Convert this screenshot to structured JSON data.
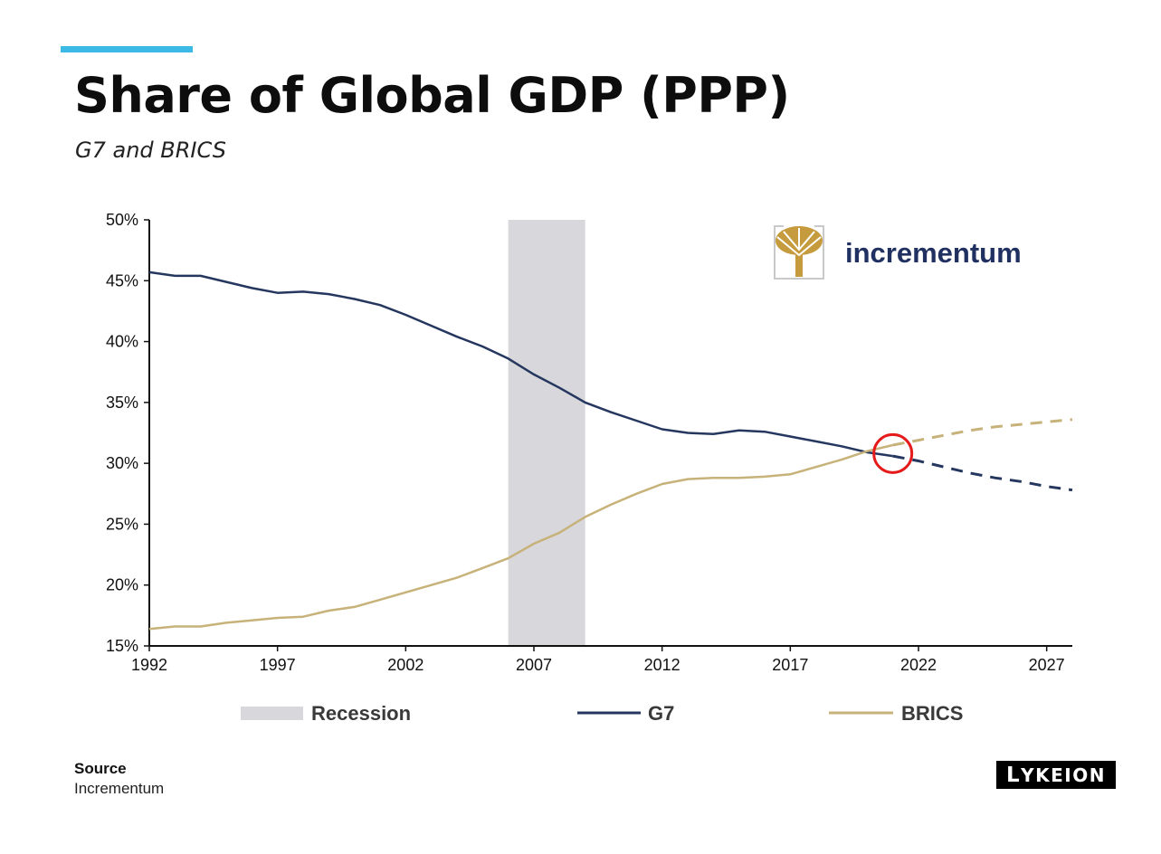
{
  "header": {
    "title": "Share of Global GDP (PPP)",
    "subtitle": "G7 and BRICS"
  },
  "footer": {
    "source_label": "Source",
    "source_text": "Incrementum",
    "logo_text": "LYKEION"
  },
  "watermark": {
    "text": "incrementum",
    "icon": "tree-icon"
  },
  "colors": {
    "accent": "#3db9e6",
    "g7": "#25375f",
    "brics": "#c7b27a",
    "recession": "#d8d7dc",
    "highlight": "#e51b1b"
  },
  "chart_data": {
    "type": "line",
    "title": "",
    "xlabel": "",
    "ylabel": "",
    "xlim": [
      1992,
      2028
    ],
    "ylim": [
      15,
      50
    ],
    "x_ticks": [
      1992,
      1997,
      2002,
      2007,
      2012,
      2017,
      2022,
      2027
    ],
    "x_tick_labels": [
      "1992",
      "1997",
      "2002",
      "2007",
      "2012",
      "2017",
      "2022",
      "2027"
    ],
    "y_ticks": [
      15,
      20,
      25,
      30,
      35,
      40,
      45,
      50
    ],
    "y_tick_labels": [
      "15%",
      "20%",
      "25%",
      "30%",
      "35%",
      "40%",
      "45%",
      "50%"
    ],
    "grid": false,
    "legend_position": "bottom",
    "recession": {
      "label": "Recession",
      "start": 2006,
      "end": 2009
    },
    "highlight_circle": {
      "x": 2021,
      "y": 30.8
    },
    "series": [
      {
        "name": "G7",
        "x": [
          1992,
          1993,
          1994,
          1995,
          1996,
          1997,
          1998,
          1999,
          2000,
          2001,
          2002,
          2003,
          2004,
          2005,
          2006,
          2007,
          2008,
          2009,
          2010,
          2011,
          2012,
          2013,
          2014,
          2015,
          2016,
          2017,
          2018,
          2019,
          2020,
          2021
        ],
        "values": [
          45.7,
          45.4,
          45.4,
          44.9,
          44.4,
          44.0,
          44.1,
          43.9,
          43.5,
          43.0,
          42.2,
          41.3,
          40.4,
          39.6,
          38.6,
          37.3,
          36.2,
          35.0,
          34.2,
          33.5,
          32.8,
          32.5,
          32.4,
          32.7,
          32.6,
          32.2,
          31.8,
          31.4,
          30.9,
          30.6
        ],
        "projection": {
          "x": [
            2021,
            2022,
            2023,
            2024,
            2025,
            2026,
            2027,
            2028
          ],
          "values": [
            30.6,
            30.2,
            29.7,
            29.2,
            28.8,
            28.5,
            28.1,
            27.8
          ]
        }
      },
      {
        "name": "BRICS",
        "x": [
          1992,
          1993,
          1994,
          1995,
          1996,
          1997,
          1998,
          1999,
          2000,
          2001,
          2002,
          2003,
          2004,
          2005,
          2006,
          2007,
          2008,
          2009,
          2010,
          2011,
          2012,
          2013,
          2014,
          2015,
          2016,
          2017,
          2018,
          2019,
          2020,
          2021
        ],
        "values": [
          16.4,
          16.6,
          16.6,
          16.9,
          17.1,
          17.3,
          17.4,
          17.9,
          18.2,
          18.8,
          19.4,
          20.0,
          20.6,
          21.4,
          22.2,
          23.4,
          24.3,
          25.6,
          26.6,
          27.5,
          28.3,
          28.7,
          28.8,
          28.8,
          28.9,
          29.1,
          29.7,
          30.3,
          31.0,
          31.5
        ],
        "projection": {
          "x": [
            2021,
            2022,
            2023,
            2024,
            2025,
            2026,
            2027,
            2028
          ],
          "values": [
            31.5,
            31.9,
            32.3,
            32.7,
            33.0,
            33.2,
            33.4,
            33.6
          ]
        }
      }
    ]
  }
}
